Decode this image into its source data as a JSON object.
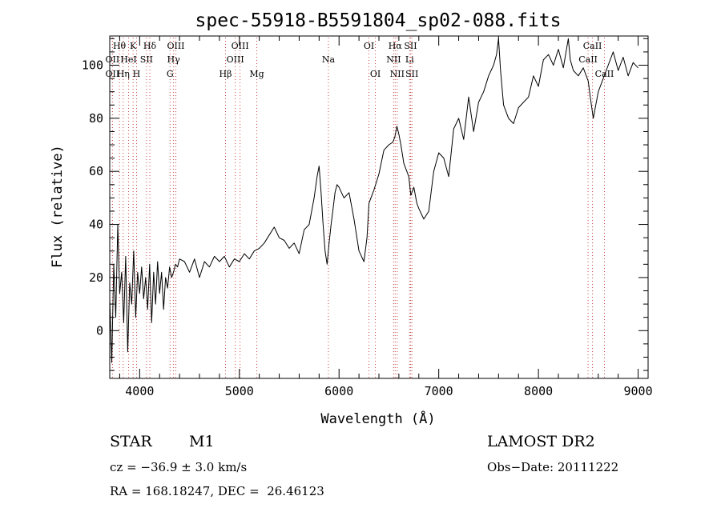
{
  "chart_data": {
    "type": "line",
    "title": "spec-55918-B5591804_sp02-088.fits",
    "xlabel": "Wavelength (Å)",
    "ylabel": "Flux (relative)",
    "xlim": [
      3700,
      9100
    ],
    "ylim": [
      -18,
      111
    ],
    "x_ticks": [
      4000,
      5000,
      6000,
      7000,
      8000,
      9000
    ],
    "y_ticks": [
      0,
      20,
      40,
      60,
      80,
      100
    ],
    "grid": false,
    "series": [
      {
        "x": [
          3700,
          3720,
          3740,
          3760,
          3780,
          3800,
          3820,
          3840,
          3860,
          3880,
          3900,
          3920,
          3940,
          3960,
          3980,
          4000,
          4020,
          4040,
          4060,
          4080,
          4100,
          4120,
          4140,
          4160,
          4180,
          4200,
          4220,
          4240,
          4260,
          4280,
          4300,
          4320,
          4340,
          4360,
          4380,
          4400,
          4450,
          4500,
          4550,
          4600,
          4650,
          4700,
          4750,
          4800,
          4850,
          4900,
          4950,
          5000,
          5050,
          5100,
          5150,
          5200,
          5250,
          5300,
          5350,
          5400,
          5450,
          5500,
          5550,
          5600,
          5650,
          5700,
          5750,
          5780,
          5800,
          5820,
          5840,
          5860,
          5880,
          5900,
          5920,
          5940,
          5960,
          5980,
          6000,
          6050,
          6100,
          6150,
          6200,
          6250,
          6280,
          6300,
          6320,
          6350,
          6400,
          6450,
          6500,
          6540,
          6560,
          6580,
          6600,
          6620,
          6650,
          6700,
          6720,
          6750,
          6780,
          6800,
          6850,
          6900,
          6950,
          7000,
          7050,
          7100,
          7150,
          7200,
          7250,
          7300,
          7350,
          7400,
          7450,
          7500,
          7550,
          7580,
          7600,
          7620,
          7650,
          7700,
          7750,
          7800,
          7850,
          7900,
          7950,
          8000,
          8050,
          8100,
          8150,
          8200,
          8250,
          8300,
          8320,
          8350,
          8400,
          8450,
          8500,
          8520,
          8550,
          8600,
          8650,
          8700,
          8750,
          8800,
          8850,
          8900,
          8950,
          9000
        ],
        "y": [
          12,
          -12,
          25,
          5,
          40,
          14,
          22,
          3,
          28,
          -8,
          18,
          10,
          30,
          5,
          22,
          14,
          24,
          12,
          20,
          8,
          25,
          3,
          22,
          10,
          26,
          14,
          22,
          8,
          20,
          16,
          24,
          20,
          22,
          25,
          24,
          27,
          26,
          22,
          27,
          20,
          26,
          24,
          28,
          26,
          28,
          24,
          27,
          26,
          29,
          27,
          30,
          31,
          33,
          36,
          39,
          35,
          34,
          31,
          33,
          29,
          38,
          40,
          50,
          58,
          62,
          52,
          40,
          30,
          25,
          33,
          40,
          46,
          52,
          55,
          54,
          50,
          52,
          42,
          30,
          26,
          35,
          48,
          50,
          53,
          59,
          68,
          70,
          71,
          73,
          77,
          74,
          70,
          63,
          58,
          51,
          54,
          48,
          46,
          42,
          45,
          60,
          67,
          65,
          58,
          76,
          80,
          72,
          88,
          75,
          86,
          90,
          96,
          100,
          104,
          110,
          98,
          85,
          80,
          78,
          84,
          86,
          88,
          96,
          92,
          102,
          104,
          100,
          106,
          99,
          110,
          102,
          98,
          96,
          99,
          94,
          88,
          80,
          90,
          95,
          100,
          105,
          98,
          103,
          96,
          101,
          99
        ]
      }
    ],
    "line_markers": [
      {
        "label": "Hθ",
        "x": 3797,
        "row": 0
      },
      {
        "label": "K",
        "x": 3934,
        "row": 0
      },
      {
        "label": "Hδ",
        "x": 4102,
        "row": 0
      },
      {
        "label": "OIII",
        "x": 4363,
        "row": 0
      },
      {
        "label": "OIII",
        "x": 5007,
        "row": 0
      },
      {
        "label": "OI",
        "x": 6300,
        "row": 0
      },
      {
        "label": "Hα",
        "x": 6563,
        "row": 0
      },
      {
        "label": "SII",
        "x": 6717,
        "row": 0
      },
      {
        "label": "CaII",
        "x": 8542,
        "row": 0
      },
      {
        "label": "OII",
        "x": 3727,
        "row": 1
      },
      {
        "label": "HeI",
        "x": 3889,
        "row": 1
      },
      {
        "label": "SII",
        "x": 4069,
        "row": 1
      },
      {
        "label": "Hγ",
        "x": 4340,
        "row": 1
      },
      {
        "label": "OIII",
        "x": 4959,
        "row": 1
      },
      {
        "label": "Na",
        "x": 5893,
        "row": 1
      },
      {
        "label": "NII",
        "x": 6548,
        "row": 1
      },
      {
        "label": "Li",
        "x": 6708,
        "row": 1
      },
      {
        "label": "CaII",
        "x": 8498,
        "row": 1
      },
      {
        "label": "OII",
        "x": 3727,
        "row": 2
      },
      {
        "label": "Hη",
        "x": 3835,
        "row": 2
      },
      {
        "label": "H",
        "x": 3969,
        "row": 2
      },
      {
        "label": "G",
        "x": 4305,
        "row": 2
      },
      {
        "label": "Hβ",
        "x": 4861,
        "row": 2
      },
      {
        "label": "Mg",
        "x": 5175,
        "row": 2
      },
      {
        "label": "OI",
        "x": 6364,
        "row": 2
      },
      {
        "label": "NII",
        "x": 6583,
        "row": 2
      },
      {
        "label": "SII",
        "x": 6731,
        "row": 2
      },
      {
        "label": "CaII",
        "x": 8662,
        "row": 2
      }
    ]
  },
  "info": {
    "object_class": "STAR",
    "subclass": "M1",
    "survey": "LAMOST DR2",
    "cz_line": "cz = −36.9 ± 3.0 km/s",
    "obs_date_line": "Obs−Date: 20111222",
    "coords_line": "RA = 168.18247, DEC =  26.46123"
  }
}
